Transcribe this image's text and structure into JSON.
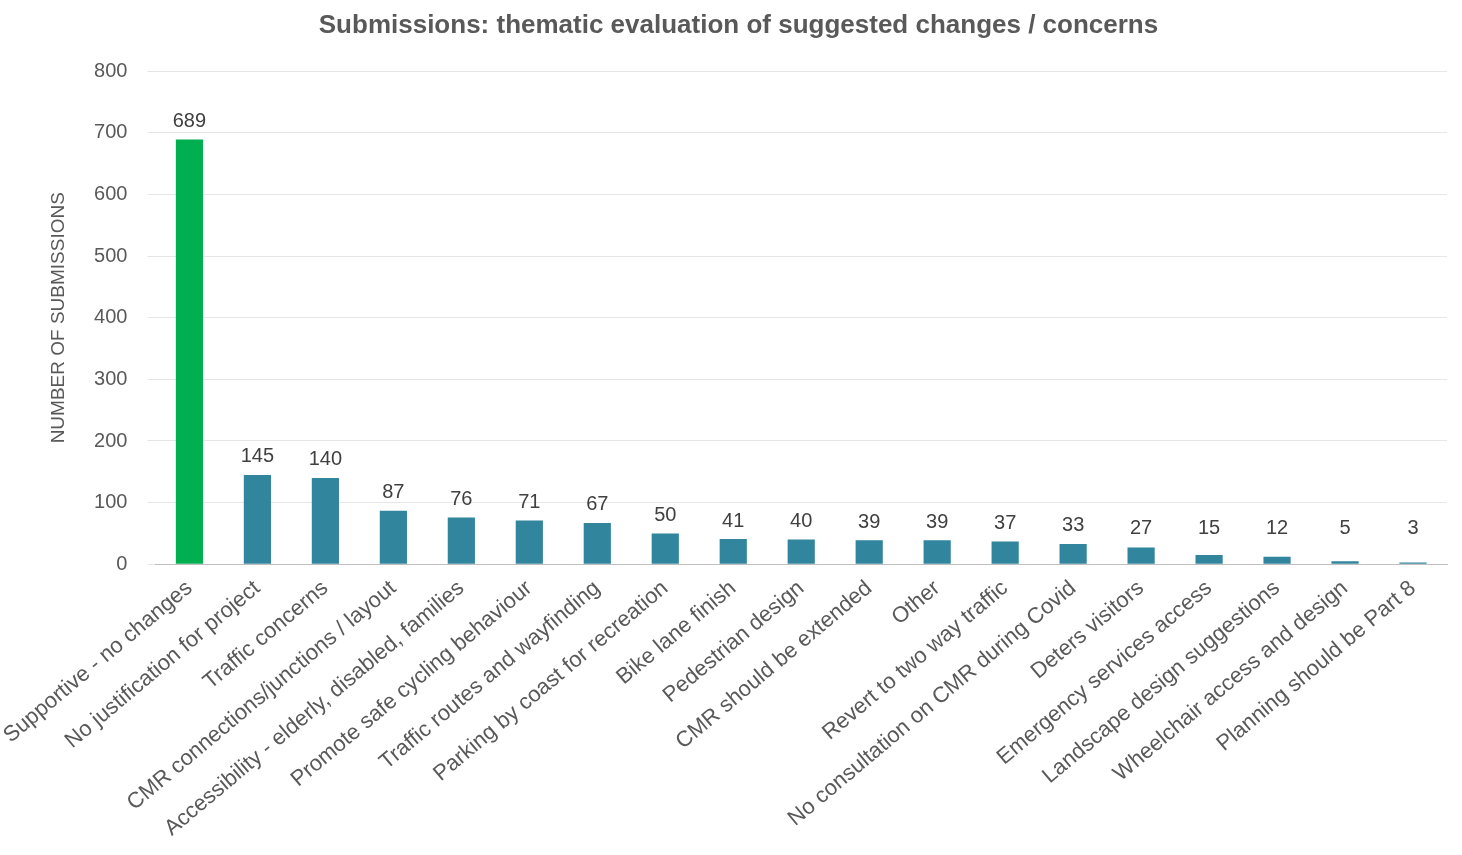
{
  "chart_data": {
    "type": "bar",
    "title": "Submissions: thematic evaluation of suggested changes / concerns",
    "ylabel": "NUMBER OF SUBMISSIONS",
    "categories": [
      "Supportive - no changes",
      "No justification for project",
      "Traffic concerns",
      "CMR connections/junctions / layout",
      "Accessibility - elderly, disabled, families",
      "Promote safe cycling behaviour",
      "Traffic routes and wayfinding",
      "Parking by coast for recreation",
      "Bike lane finish",
      "Pedestrian design",
      "CMR should be extended",
      "Other",
      "Revert to two way traffic",
      "No consultation on CMR during Covid",
      "Deters visitors",
      "Emergency services access",
      "Landscape design suggestions",
      "Wheelchair access and design",
      "Planning should be Part 8"
    ],
    "values": [
      689,
      145,
      140,
      87,
      76,
      71,
      67,
      50,
      41,
      40,
      39,
      39,
      37,
      33,
      27,
      15,
      12,
      5,
      3
    ],
    "colors": [
      "#00b050",
      "#31859c",
      "#31859c",
      "#31859c",
      "#31859c",
      "#31859c",
      "#31859c",
      "#31859c",
      "#31859c",
      "#31859c",
      "#31859c",
      "#31859c",
      "#31859c",
      "#31859c",
      "#31859c",
      "#31859c",
      "#31859c",
      "#31859c",
      "#31859c"
    ],
    "ylim": [
      0,
      800
    ],
    "yticks": [
      0,
      100,
      200,
      300,
      400,
      500,
      600,
      700,
      800
    ],
    "grid": "y",
    "legend": false,
    "data_labels": true
  }
}
